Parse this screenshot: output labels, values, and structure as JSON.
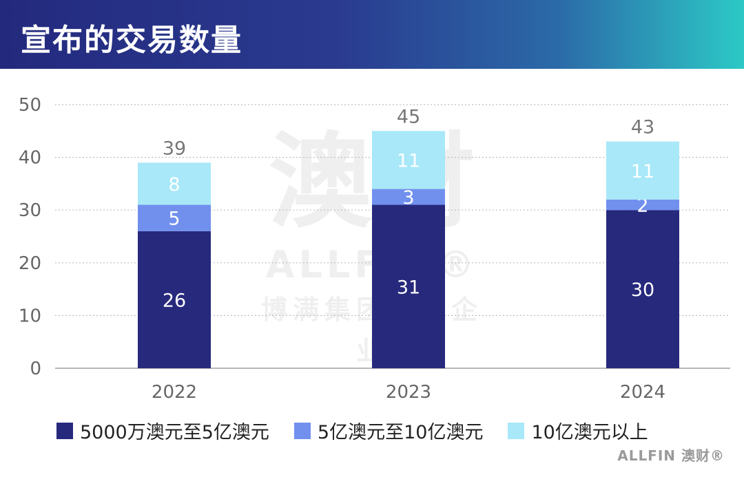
{
  "header": {
    "title": "宣布的交易数量"
  },
  "watermark": {
    "main": "澳财",
    "sub": "ALLFIN®",
    "foot": "博满集团旗下企业"
  },
  "brand": "ALLFIN 澳财®",
  "colors": {
    "series1": "#27297d",
    "series2": "#7190ee",
    "series3": "#a8e8f8",
    "grid": "#bdbdbd",
    "tick": "#666666"
  },
  "chart_data": {
    "type": "bar",
    "stacked": true,
    "categories": [
      "2022",
      "2023",
      "2024"
    ],
    "series": [
      {
        "name": "5000万澳元至5亿澳元",
        "values": [
          26,
          31,
          30
        ]
      },
      {
        "name": "5亿澳元至10亿澳元",
        "values": [
          5,
          3,
          2
        ]
      },
      {
        "name": "10亿澳元以上",
        "values": [
          8,
          11,
          11
        ]
      }
    ],
    "totals": [
      39,
      45,
      43
    ],
    "ylim": [
      0,
      50
    ],
    "yticks": [
      0,
      10,
      20,
      30,
      40,
      50
    ],
    "grid": true,
    "legend_position": "bottom",
    "title": "",
    "xlabel": "",
    "ylabel": ""
  }
}
